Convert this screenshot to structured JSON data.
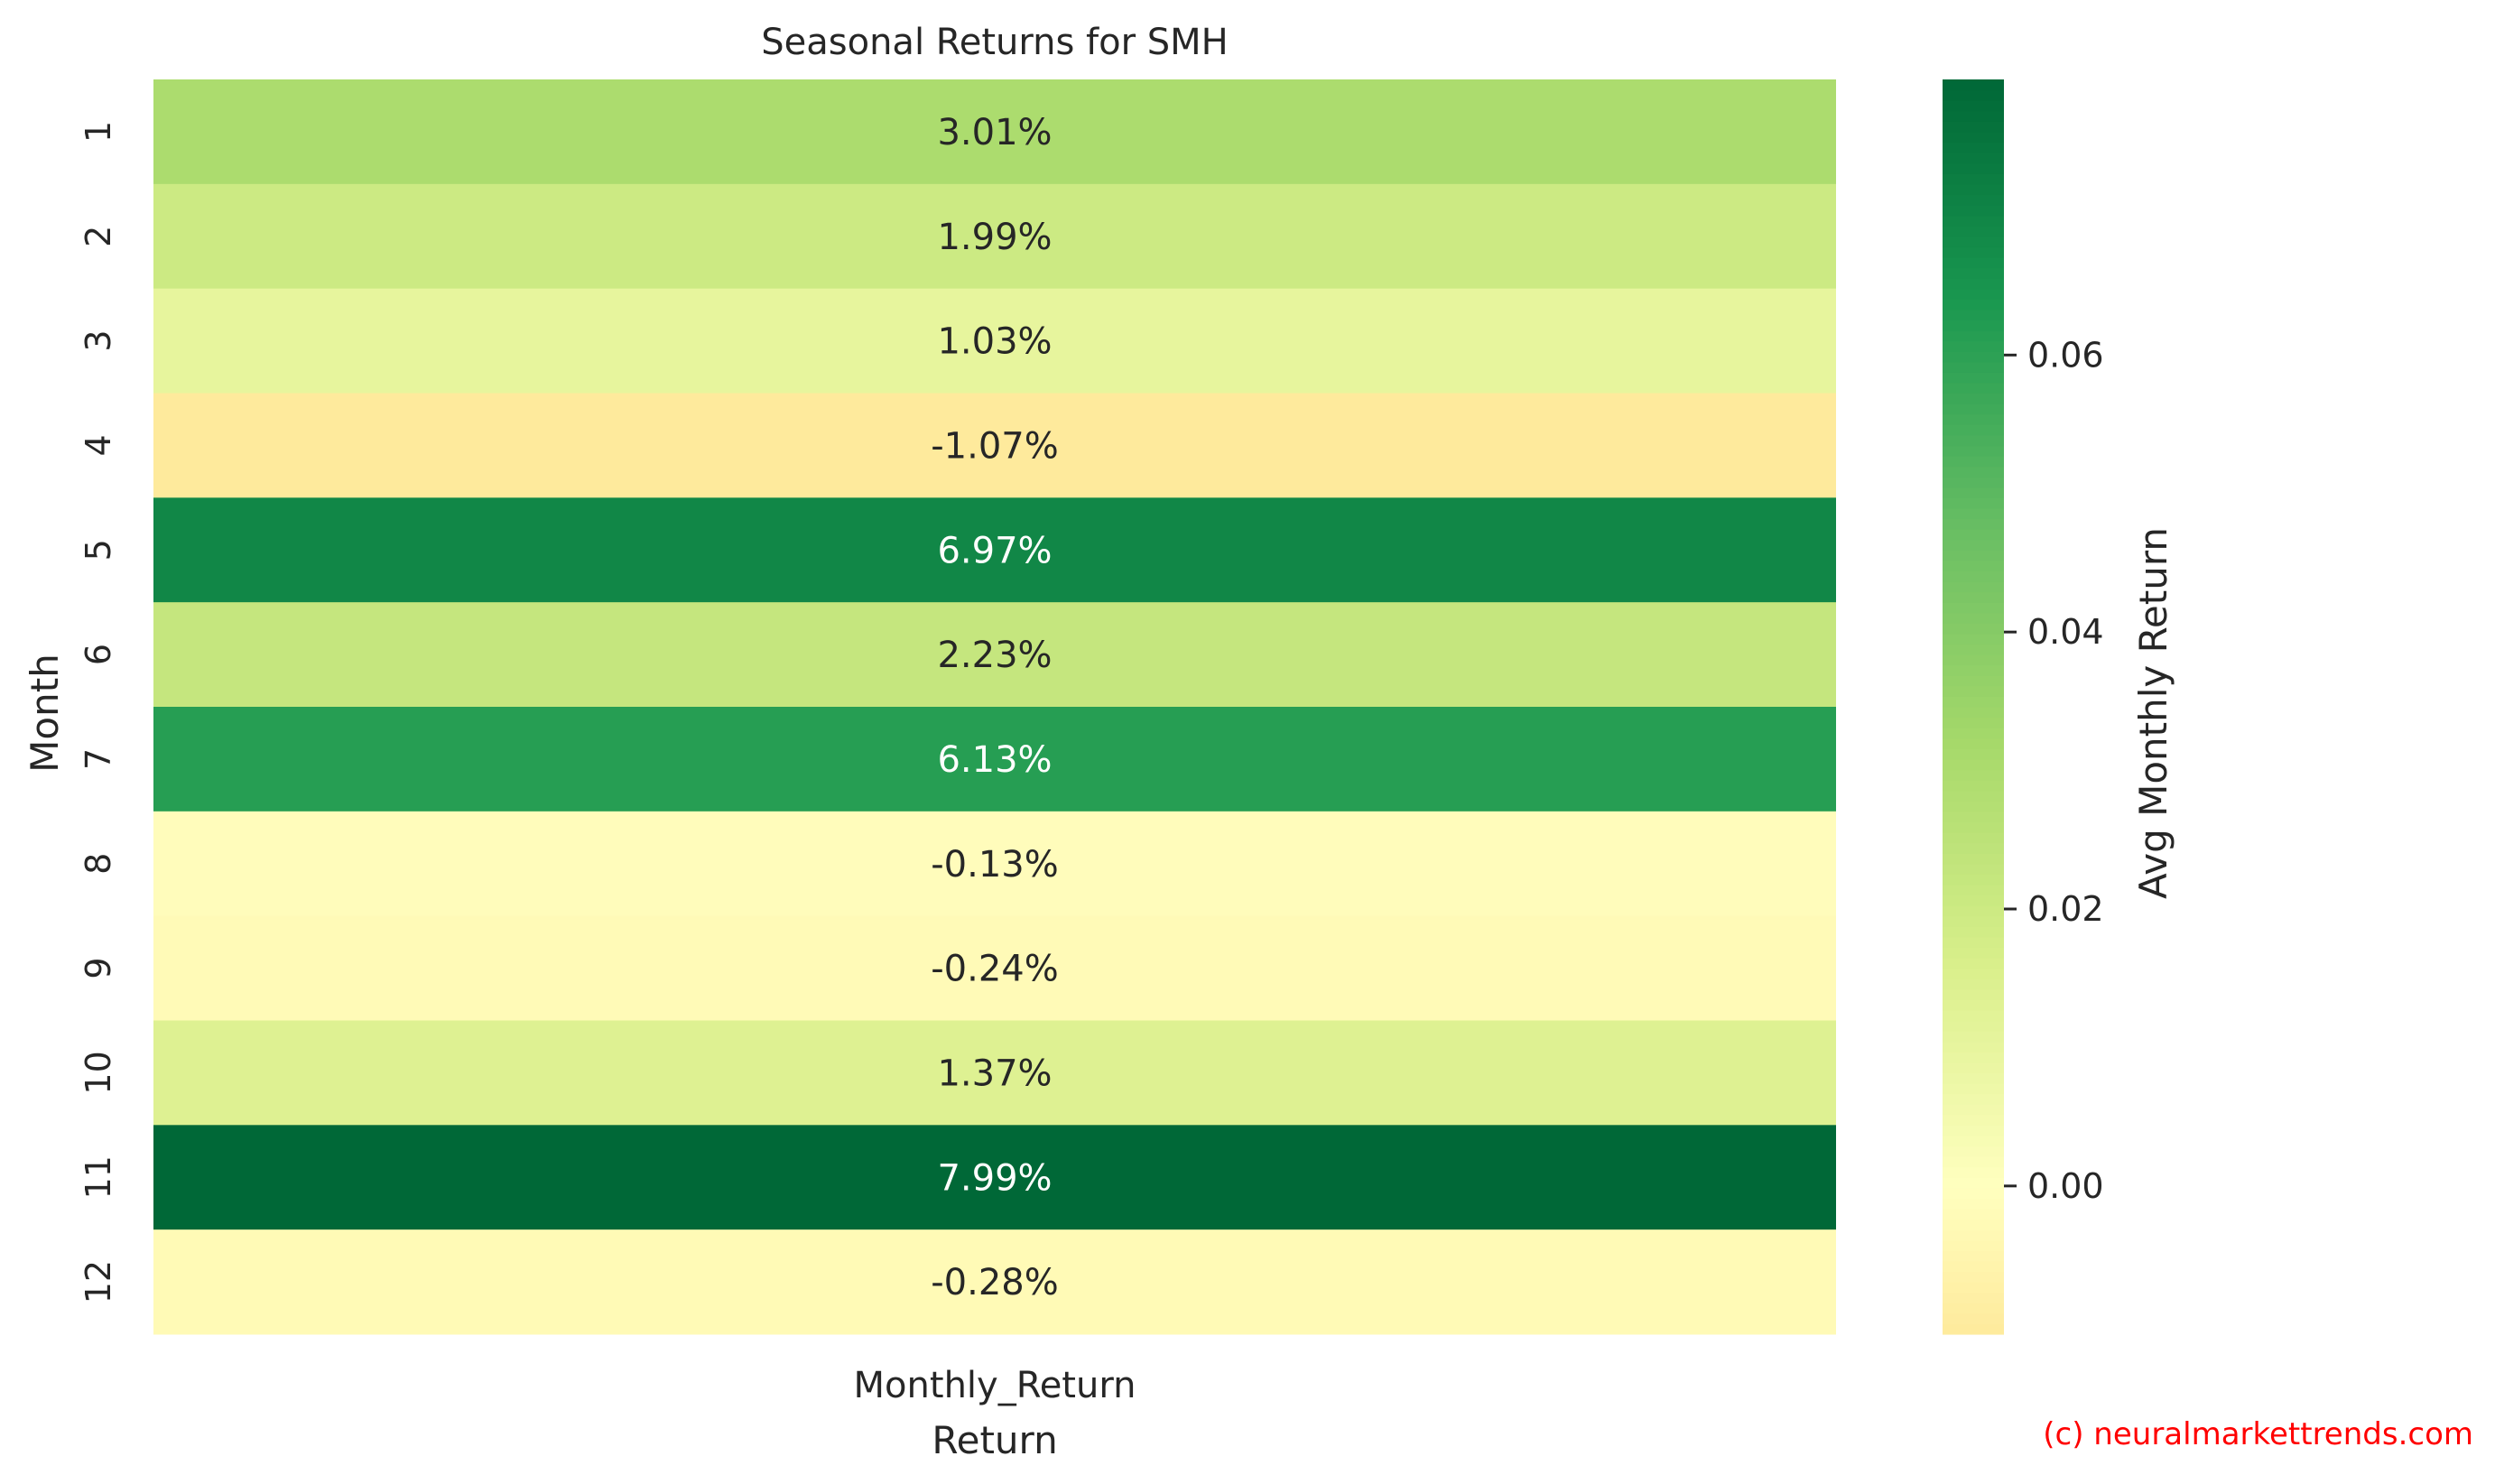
{
  "chart_data": {
    "type": "heatmap",
    "title": "Seasonal Returns for SMH",
    "xlabel": "Return",
    "ylabel": "Month",
    "x_categories": [
      "Monthly_Return"
    ],
    "y_categories": [
      "1",
      "2",
      "3",
      "4",
      "5",
      "6",
      "7",
      "8",
      "9",
      "10",
      "11",
      "12"
    ],
    "values": [
      0.0301,
      0.0199,
      0.0103,
      -0.0107,
      0.0697,
      0.0223,
      0.0613,
      -0.0013,
      -0.0024,
      0.0137,
      0.0799,
      -0.0028
    ],
    "annotations": [
      "3.01%",
      "1.99%",
      "1.03%",
      "-1.07%",
      "6.97%",
      "2.23%",
      "6.13%",
      "-0.13%",
      "-0.24%",
      "1.37%",
      "7.99%",
      "-0.28%"
    ],
    "colormap": "RdYlGn",
    "colorbar": {
      "label": "Avg Monthly Return",
      "vmin": -0.0107,
      "vmax": 0.0799,
      "center": 0,
      "ticks": [
        0.0,
        0.02,
        0.04,
        0.06
      ],
      "tick_labels": [
        "0.00",
        "0.02",
        "0.04",
        "0.06"
      ]
    },
    "grid": false
  },
  "watermark": "(c) neuralmarkettrends.com"
}
